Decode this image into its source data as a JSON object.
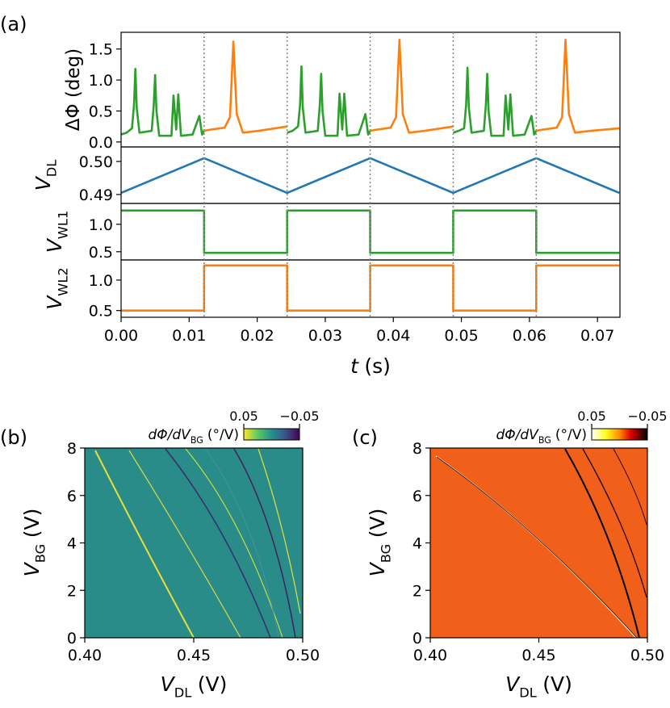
{
  "chart_data": [
    {
      "type": "line",
      "panel_label": "(a)",
      "xlim": [
        0,
        0.0733
      ],
      "xticks": [
        {
          "value": 0,
          "label": "0.00"
        },
        0.01,
        0.02,
        0.03,
        0.04,
        0.05,
        0.06,
        0.07
      ],
      "xlabel": {
        "main": "t",
        "unit": "(s)"
      },
      "vlines": [
        0.0122,
        0.0244,
        0.0366,
        0.0488,
        0.061
      ],
      "panels": [
        {
          "ylabel": "ΔΦ (deg)",
          "ylim": [
            -0.08,
            1.77
          ],
          "yticks": [
            {
              "value": 0,
              "label": "0.0"
            },
            0.5,
            {
              "value": 1,
              "label": "1.0"
            },
            1.5
          ],
          "series": [
            {
              "color": "#2ca02c",
              "x": [
                0,
                0.0008,
                0.0016,
                0.0019,
                0.0021,
                0.0023,
                0.0027,
                0.0045,
                0.0048,
                0.005,
                0.0052,
                0.0056,
                0.0074,
                0.0077,
                0.0081,
                0.0084,
                0.0088,
                0.0105,
                0.0115,
                0.0119,
                0.0122
              ],
              "values": [
                0.12,
                0.15,
                0.22,
                0.6,
                1.18,
                0.55,
                0.15,
                0.18,
                0.6,
                1.08,
                0.5,
                0.1,
                0.1,
                0.75,
                0.2,
                0.77,
                0.1,
                0.12,
                0.42,
                0.12,
                0.18
              ]
            },
            {
              "color": "#ff7f0e",
              "x": [
                0.0122,
                0.0132,
                0.0152,
                0.016,
                0.0165,
                0.017,
                0.0179,
                0.0202,
                0.0244
              ],
              "values": [
                0.18,
                0.2,
                0.23,
                0.4,
                1.62,
                0.45,
                0.15,
                0.18,
                0.25
              ]
            },
            {
              "color": "#2ca02c",
              "x": [
                0.0244,
                0.0252,
                0.026,
                0.0263,
                0.0265,
                0.0267,
                0.0271,
                0.0289,
                0.0292,
                0.0294,
                0.0296,
                0.03,
                0.0318,
                0.0321,
                0.0325,
                0.0328,
                0.0332,
                0.0349,
                0.0359,
                0.0363,
                0.0366
              ],
              "values": [
                0.15,
                0.18,
                0.25,
                0.6,
                1.22,
                0.55,
                0.15,
                0.18,
                0.6,
                1.1,
                0.5,
                0.1,
                0.1,
                0.78,
                0.2,
                0.78,
                0.1,
                0.12,
                0.45,
                0.12,
                0.18
              ]
            },
            {
              "color": "#ff7f0e",
              "x": [
                0.0366,
                0.0376,
                0.0396,
                0.0404,
                0.0409,
                0.0414,
                0.0423,
                0.0446,
                0.0488
              ],
              "values": [
                0.18,
                0.2,
                0.23,
                0.4,
                1.65,
                0.45,
                0.15,
                0.18,
                0.25
              ]
            },
            {
              "color": "#2ca02c",
              "x": [
                0.0488,
                0.0496,
                0.0504,
                0.0507,
                0.0509,
                0.0511,
                0.0515,
                0.0533,
                0.0536,
                0.0538,
                0.054,
                0.0544,
                0.0562,
                0.0565,
                0.0569,
                0.0572,
                0.0576,
                0.0593,
                0.0603,
                0.0607,
                0.061
              ],
              "values": [
                0.15,
                0.18,
                0.22,
                0.6,
                1.2,
                0.55,
                0.15,
                0.18,
                0.6,
                1.1,
                0.5,
                0.1,
                0.1,
                0.75,
                0.2,
                0.77,
                0.1,
                0.12,
                0.42,
                0.12,
                0.18
              ]
            },
            {
              "color": "#ff7f0e",
              "x": [
                0.061,
                0.062,
                0.064,
                0.0648,
                0.0653,
                0.0658,
                0.0667,
                0.069,
                0.0732
              ],
              "values": [
                0.18,
                0.2,
                0.23,
                0.4,
                1.65,
                0.45,
                0.15,
                0.18,
                0.22
              ]
            }
          ]
        },
        {
          "ylabel": {
            "main": "V",
            "sub": "DL"
          },
          "ylim": [
            0.4873,
            0.5044
          ],
          "yticks": [
            0.49,
            {
              "value": 0.5,
              "label": "0.50"
            }
          ],
          "series": [
            {
              "color": "#1f77b4",
              "x": [
                0,
                0.0122,
                0.0244,
                0.0366,
                0.0488,
                0.061,
                0.0732
              ],
              "values": [
                0.4905,
                0.501,
                0.4905,
                0.501,
                0.4905,
                0.501,
                0.4905
              ]
            }
          ]
        },
        {
          "ylabel": {
            "main": "V",
            "sub": "WL1"
          },
          "ylim": [
            0.35,
            1.38
          ],
          "yticks": [
            0.5,
            {
              "value": 1,
              "label": "1.0"
            }
          ],
          "series": [
            {
              "color": "#2ca02c",
              "x": [
                0,
                0.0122,
                0.0122,
                0.0244,
                0.0244,
                0.0366,
                0.0366,
                0.0488,
                0.0488,
                0.061,
                0.061,
                0.0732
              ],
              "values": [
                1.25,
                1.25,
                0.48,
                0.48,
                1.25,
                1.25,
                0.48,
                0.48,
                1.25,
                1.25,
                0.48,
                0.48
              ]
            }
          ]
        },
        {
          "ylabel": {
            "main": "V",
            "sub": "WL2"
          },
          "ylim": [
            0.39,
            1.33
          ],
          "yticks": [
            0.5,
            {
              "value": 1,
              "label": "1.0"
            }
          ],
          "series": [
            {
              "color": "#ff7f0e",
              "x": [
                0,
                0.0122,
                0.0122,
                0.0244,
                0.0244,
                0.0366,
                0.0366,
                0.0488,
                0.0488,
                0.061,
                0.061,
                0.0732
              ],
              "values": [
                0.5,
                0.5,
                1.24,
                1.24,
                0.5,
                0.5,
                1.24,
                1.24,
                0.5,
                0.5,
                1.24,
                1.24
              ]
            }
          ]
        }
      ]
    },
    {
      "type": "heatmap",
      "panel_label": "(b)",
      "xlim": [
        0.4,
        0.5
      ],
      "xticks": [
        {
          "value": 0.4,
          "label": "0.40"
        },
        0.45,
        {
          "value": 0.5,
          "label": "0.50"
        }
      ],
      "ylim": [
        0,
        8
      ],
      "yticks": [
        0,
        2,
        4,
        6,
        8
      ],
      "xlabel": {
        "main": "V",
        "sub": "DL",
        "unit": "(V)"
      },
      "ylabel": {
        "main": "V",
        "sub": "BG",
        "unit": "(V)"
      },
      "colorbar": {
        "label": {
          "main": "dΦ/dV",
          "sub": "BG",
          "unit": "(°/V)"
        },
        "colormap": "viridis_r",
        "clim": [
          0.05,
          -0.05
        ],
        "ticks": [
          0.05,
          {
            "value": -0.05,
            "label": "−0.05"
          }
        ]
      }
    },
    {
      "type": "heatmap",
      "panel_label": "(c)",
      "xlim": [
        0.4,
        0.5
      ],
      "xticks": [
        {
          "value": 0.4,
          "label": "0.40"
        },
        0.45,
        {
          "value": 0.5,
          "label": "0.50"
        }
      ],
      "ylim": [
        0,
        8
      ],
      "yticks": [
        0,
        2,
        4,
        6,
        8
      ],
      "xlabel": {
        "main": "V",
        "sub": "DL",
        "unit": "(V)"
      },
      "ylabel": {
        "main": "V",
        "sub": "BG",
        "unit": "(V)"
      },
      "colorbar": {
        "label": {
          "main": "dΦ/dV",
          "sub": "BG",
          "unit": "(°/V)"
        },
        "colormap": "hot_r",
        "clim": [
          0.05,
          -0.05
        ],
        "ticks": [
          0.05,
          {
            "value": -0.05,
            "label": "−0.05"
          }
        ]
      }
    }
  ]
}
